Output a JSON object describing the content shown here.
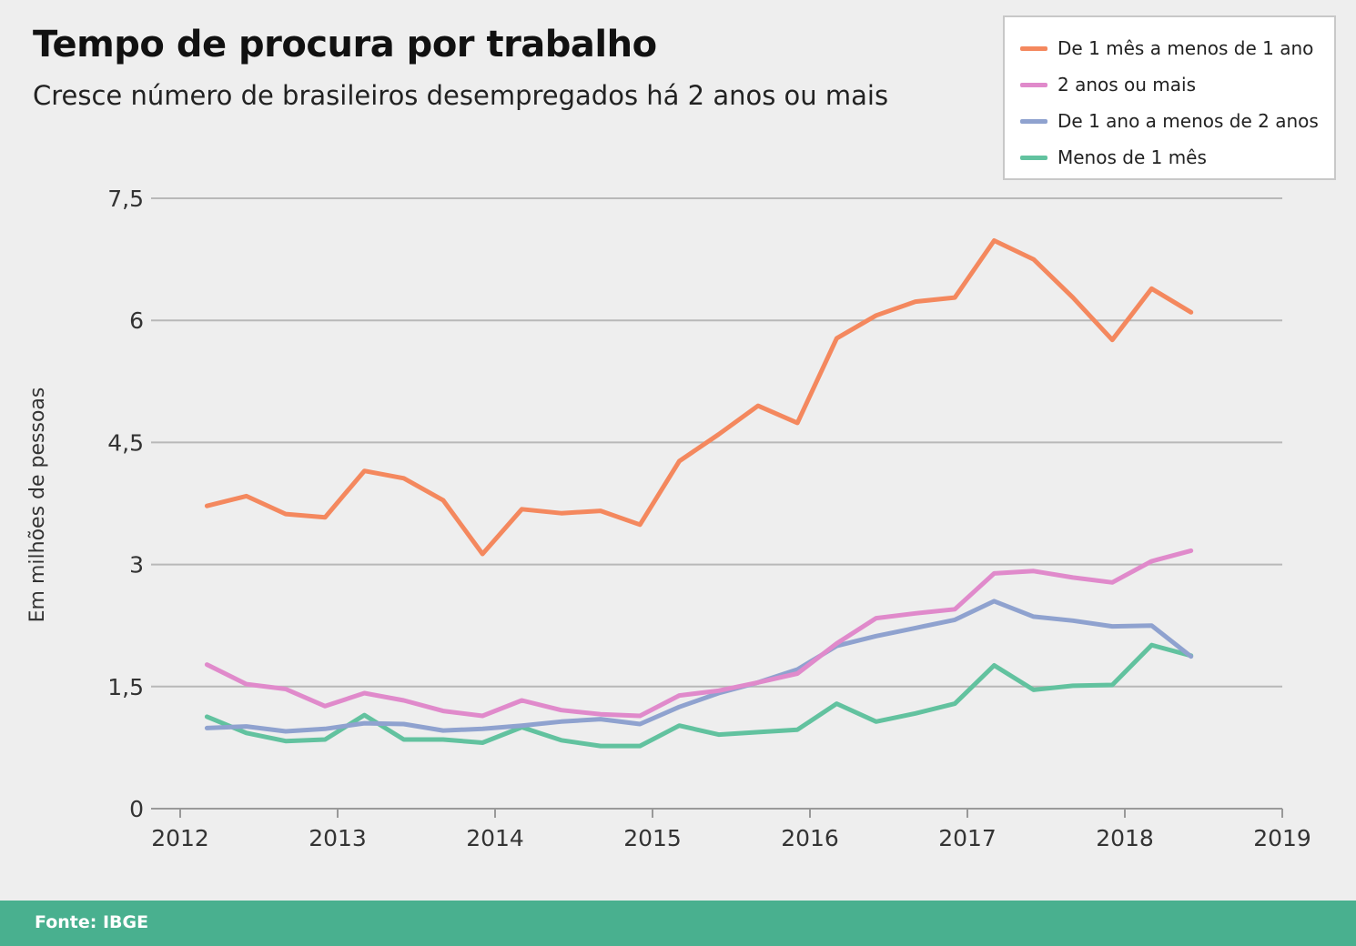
{
  "header": {
    "title": "Tempo de procura por trabalho",
    "subtitle": "Cresce número de brasileiros desempregados há 2 anos ou mais"
  },
  "footer": {
    "source": "Fonte: IBGE"
  },
  "colors": {
    "background": "#eeeeee",
    "footer": "#49b08f",
    "grid": "#b8b8b8"
  },
  "chart_data": {
    "type": "line",
    "title": "Tempo de procura por trabalho",
    "subtitle": "Cresce número de brasileiros desempregados há 2 anos ou mais",
    "xlabel": "",
    "ylabel": "Em milhões de pessoas",
    "xlim": [
      2012,
      2019
    ],
    "ylim": [
      0,
      7.5
    ],
    "x_ticks": [
      2012,
      2013,
      2014,
      2015,
      2016,
      2017,
      2018,
      2019
    ],
    "y_ticks": [
      0,
      1.5,
      3,
      4.5,
      6,
      7.5
    ],
    "y_tick_labels": [
      "0",
      "1,5",
      "3",
      "4,5",
      "6",
      "7,5"
    ],
    "grid": true,
    "legend_position": "top-right",
    "x": [
      2012.17,
      2012.42,
      2012.67,
      2012.92,
      2013.17,
      2013.42,
      2013.67,
      2013.92,
      2014.17,
      2014.42,
      2014.67,
      2014.92,
      2015.17,
      2015.42,
      2015.67,
      2015.92,
      2016.17,
      2016.42,
      2016.67,
      2016.92,
      2017.17,
      2017.42,
      2017.67,
      2017.92,
      2018.17,
      2018.42
    ],
    "series": [
      {
        "name": "De 1 mês a menos de 1 ano",
        "color": "#f4885e",
        "values": [
          3.72,
          3.84,
          3.62,
          3.58,
          4.15,
          4.06,
          3.79,
          3.13,
          3.68,
          3.63,
          3.66,
          3.49,
          4.27,
          4.6,
          4.95,
          4.74,
          5.78,
          6.06,
          6.23,
          6.28,
          6.98,
          6.75,
          6.28,
          5.76,
          6.39,
          6.1
        ]
      },
      {
        "name": "2 anos ou mais",
        "color": "#e08acb",
        "values": [
          1.77,
          1.53,
          1.47,
          1.26,
          1.42,
          1.33,
          1.2,
          1.14,
          1.33,
          1.21,
          1.16,
          1.14,
          1.39,
          1.45,
          1.55,
          1.66,
          2.03,
          2.34,
          2.4,
          2.45,
          2.89,
          2.92,
          2.84,
          2.78,
          3.04,
          3.17
        ]
      },
      {
        "name": "De 1 ano a menos de 2 anos",
        "color": "#8fa2cf",
        "values": [
          0.99,
          1.01,
          0.95,
          0.98,
          1.05,
          1.04,
          0.96,
          0.98,
          1.02,
          1.07,
          1.1,
          1.04,
          1.25,
          1.42,
          1.55,
          1.71,
          2.0,
          2.12,
          2.22,
          2.32,
          2.55,
          2.36,
          2.31,
          2.24,
          2.25,
          1.87
        ]
      },
      {
        "name": "Menos de 1 mês",
        "color": "#62c29f",
        "values": [
          1.13,
          0.93,
          0.83,
          0.85,
          1.15,
          0.85,
          0.85,
          0.81,
          1.0,
          0.84,
          0.77,
          0.77,
          1.02,
          0.91,
          0.94,
          0.97,
          1.29,
          1.07,
          1.17,
          1.29,
          1.76,
          1.46,
          1.51,
          1.52,
          2.01,
          1.88
        ]
      }
    ]
  }
}
